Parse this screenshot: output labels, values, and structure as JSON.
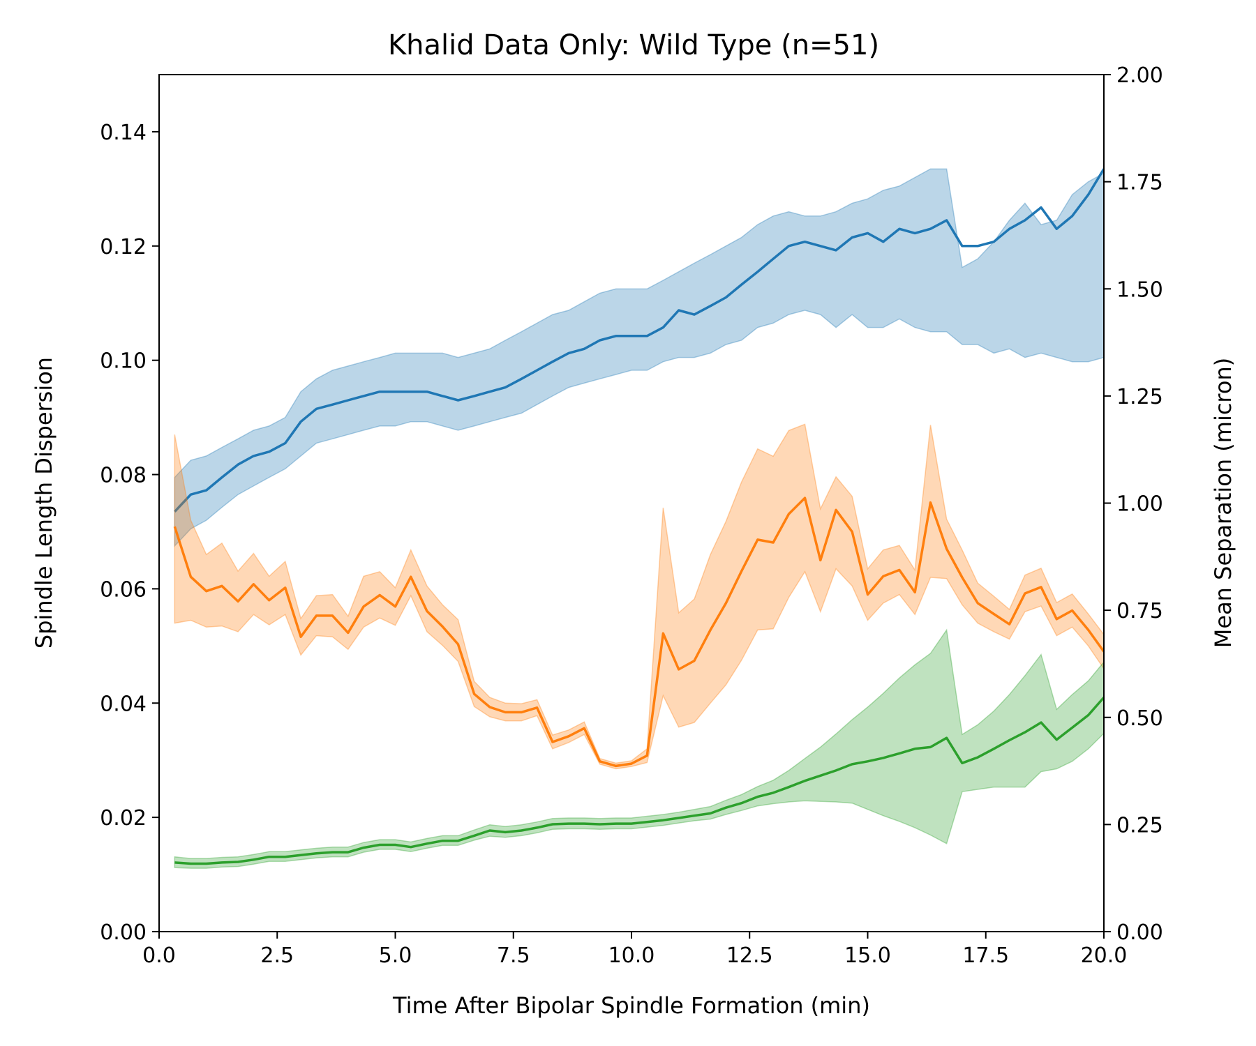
{
  "chart_data": {
    "type": "line",
    "title": "Khalid Data Only: Wild Type (n=51)",
    "xlabel": "Time After Bipolar Spindle Formation (min)",
    "ylabel": "Spindle Length Dispersion",
    "y2label": "Mean Separation (micron)",
    "xlim": [
      0,
      20
    ],
    "ylim": [
      0,
      0.15
    ],
    "y2lim": [
      0,
      2.0
    ],
    "x_ticks": [
      "0.0",
      "2.5",
      "5.0",
      "7.5",
      "10.0",
      "12.5",
      "15.0",
      "17.5",
      "20.0"
    ],
    "y_ticks": [
      "0.00",
      "0.02",
      "0.04",
      "0.06",
      "0.08",
      "0.10",
      "0.12",
      "0.14"
    ],
    "y2_ticks": [
      "0.00",
      "0.25",
      "0.50",
      "0.75",
      "1.00",
      "1.25",
      "1.50",
      "1.75",
      "2.00"
    ],
    "grid": false,
    "x": [
      0.33,
      0.67,
      1.0,
      1.33,
      1.67,
      2.0,
      2.33,
      2.67,
      3.0,
      3.33,
      3.67,
      4.0,
      4.33,
      4.67,
      5.0,
      5.33,
      5.67,
      6.0,
      6.33,
      6.67,
      7.0,
      7.33,
      7.67,
      8.0,
      8.33,
      8.67,
      9.0,
      9.33,
      9.67,
      10.0,
      10.33,
      10.67,
      11.0,
      11.33,
      11.67,
      12.0,
      12.33,
      12.67,
      13.0,
      13.33,
      13.67,
      14.0,
      14.33,
      14.67,
      15.0,
      15.33,
      15.67,
      16.0,
      16.33,
      16.67,
      17.0,
      17.33,
      17.67,
      18.0,
      18.33,
      18.67,
      19.0,
      19.33,
      19.67,
      20.0
    ],
    "series": [
      {
        "axis": "right",
        "color": "#1f77b4",
        "fill": "#1f77b4",
        "values": [
          0.98,
          1.02,
          1.03,
          1.06,
          1.09,
          1.11,
          1.12,
          1.14,
          1.19,
          1.22,
          1.23,
          1.24,
          1.25,
          1.26,
          1.26,
          1.26,
          1.26,
          1.25,
          1.24,
          1.25,
          1.26,
          1.27,
          1.29,
          1.31,
          1.33,
          1.35,
          1.36,
          1.38,
          1.39,
          1.39,
          1.39,
          1.41,
          1.45,
          1.44,
          1.46,
          1.48,
          1.51,
          1.54,
          1.57,
          1.6,
          1.61,
          1.6,
          1.59,
          1.62,
          1.63,
          1.61,
          1.64,
          1.63,
          1.64,
          1.66,
          1.6,
          1.6,
          1.61,
          1.64,
          1.66,
          1.69,
          1.64,
          1.67,
          1.72,
          1.78
        ],
        "lower": [
          0.9,
          0.94,
          0.96,
          0.99,
          1.02,
          1.04,
          1.06,
          1.08,
          1.11,
          1.14,
          1.15,
          1.16,
          1.17,
          1.18,
          1.18,
          1.19,
          1.19,
          1.18,
          1.17,
          1.18,
          1.19,
          1.2,
          1.21,
          1.23,
          1.25,
          1.27,
          1.28,
          1.29,
          1.3,
          1.31,
          1.31,
          1.33,
          1.34,
          1.34,
          1.35,
          1.37,
          1.38,
          1.41,
          1.42,
          1.44,
          1.45,
          1.44,
          1.41,
          1.44,
          1.41,
          1.41,
          1.43,
          1.41,
          1.4,
          1.4,
          1.37,
          1.37,
          1.35,
          1.36,
          1.34,
          1.35,
          1.34,
          1.33,
          1.33,
          1.34
        ],
        "upper": [
          1.06,
          1.1,
          1.11,
          1.13,
          1.15,
          1.17,
          1.18,
          1.2,
          1.26,
          1.29,
          1.31,
          1.32,
          1.33,
          1.34,
          1.35,
          1.35,
          1.35,
          1.35,
          1.34,
          1.35,
          1.36,
          1.38,
          1.4,
          1.42,
          1.44,
          1.45,
          1.47,
          1.49,
          1.5,
          1.5,
          1.5,
          1.52,
          1.54,
          1.56,
          1.58,
          1.6,
          1.62,
          1.65,
          1.67,
          1.68,
          1.67,
          1.67,
          1.68,
          1.7,
          1.71,
          1.73,
          1.74,
          1.76,
          1.78,
          1.78,
          1.55,
          1.57,
          1.61,
          1.66,
          1.7,
          1.65,
          1.66,
          1.72,
          1.75,
          1.77
        ]
      },
      {
        "axis": "left",
        "color": "#ff7f0e",
        "fill": "#ff7f0e",
        "values": [
          0.0709,
          0.0621,
          0.0596,
          0.0605,
          0.0578,
          0.0608,
          0.058,
          0.0602,
          0.0516,
          0.0553,
          0.0553,
          0.0523,
          0.0569,
          0.0589,
          0.0569,
          0.0621,
          0.0561,
          0.0534,
          0.0503,
          0.0416,
          0.0393,
          0.0384,
          0.0384,
          0.0392,
          0.0332,
          0.0342,
          0.0356,
          0.0298,
          0.029,
          0.0294,
          0.0308,
          0.0522,
          0.0459,
          0.0474,
          0.0528,
          0.0575,
          0.0631,
          0.0686,
          0.0681,
          0.0731,
          0.0759,
          0.065,
          0.0738,
          0.07,
          0.059,
          0.0622,
          0.0633,
          0.0594,
          0.0751,
          0.067,
          0.062,
          0.0575,
          0.0556,
          0.0538,
          0.0592,
          0.0603,
          0.0547,
          0.0562,
          0.0528,
          0.049
        ],
        "lower": [
          0.054,
          0.0545,
          0.0533,
          0.0535,
          0.0525,
          0.0555,
          0.0537,
          0.0555,
          0.0484,
          0.0518,
          0.0516,
          0.0494,
          0.0533,
          0.0549,
          0.0536,
          0.0588,
          0.0525,
          0.0501,
          0.0473,
          0.0394,
          0.0376,
          0.0369,
          0.0369,
          0.0378,
          0.032,
          0.0331,
          0.0345,
          0.0293,
          0.0285,
          0.0289,
          0.0296,
          0.0413,
          0.0358,
          0.0366,
          0.04,
          0.0432,
          0.0475,
          0.0528,
          0.053,
          0.0585,
          0.063,
          0.056,
          0.0635,
          0.0605,
          0.0545,
          0.0575,
          0.059,
          0.0555,
          0.062,
          0.0618,
          0.0572,
          0.054,
          0.0525,
          0.0512,
          0.056,
          0.057,
          0.0518,
          0.0533,
          0.05,
          0.046
        ],
        "upper": [
          0.087,
          0.072,
          0.066,
          0.068,
          0.0631,
          0.0662,
          0.0622,
          0.0648,
          0.0548,
          0.0588,
          0.059,
          0.0552,
          0.0622,
          0.063,
          0.0602,
          0.0668,
          0.0605,
          0.0572,
          0.0546,
          0.0438,
          0.041,
          0.04,
          0.0399,
          0.0406,
          0.0344,
          0.0353,
          0.0367,
          0.0303,
          0.0295,
          0.0299,
          0.032,
          0.0742,
          0.0558,
          0.0582,
          0.066,
          0.0718,
          0.0787,
          0.0845,
          0.0832,
          0.0877,
          0.0888,
          0.074,
          0.0796,
          0.0762,
          0.0635,
          0.0668,
          0.0676,
          0.0633,
          0.0887,
          0.0722,
          0.0668,
          0.061,
          0.0587,
          0.0564,
          0.0624,
          0.0636,
          0.0576,
          0.0591,
          0.0556,
          0.052
        ]
      },
      {
        "axis": "left",
        "color": "#2ca02c",
        "fill": "#2ca02c",
        "values": [
          0.0121,
          0.0119,
          0.0119,
          0.0121,
          0.0122,
          0.0126,
          0.0131,
          0.0131,
          0.0134,
          0.0137,
          0.0139,
          0.0139,
          0.0147,
          0.0152,
          0.0152,
          0.0148,
          0.0154,
          0.0159,
          0.0159,
          0.0168,
          0.0177,
          0.0174,
          0.0177,
          0.0182,
          0.0188,
          0.0189,
          0.0189,
          0.0188,
          0.0189,
          0.0189,
          0.0192,
          0.0195,
          0.0199,
          0.0203,
          0.0207,
          0.0217,
          0.0225,
          0.0236,
          0.0243,
          0.0253,
          0.0264,
          0.0273,
          0.0282,
          0.0293,
          0.0298,
          0.0304,
          0.0312,
          0.032,
          0.0323,
          0.0339,
          0.0295,
          0.0305,
          0.032,
          0.0335,
          0.0349,
          0.0366,
          0.0336,
          0.0357,
          0.0379,
          0.041
        ],
        "lower": [
          0.0112,
          0.0111,
          0.0111,
          0.0113,
          0.0114,
          0.0118,
          0.0123,
          0.0123,
          0.0126,
          0.0129,
          0.0131,
          0.0131,
          0.0139,
          0.0144,
          0.0144,
          0.014,
          0.0146,
          0.0151,
          0.0151,
          0.016,
          0.0167,
          0.0165,
          0.0168,
          0.0173,
          0.0179,
          0.018,
          0.018,
          0.0179,
          0.018,
          0.018,
          0.0183,
          0.0186,
          0.019,
          0.0194,
          0.0197,
          0.0205,
          0.0212,
          0.022,
          0.0224,
          0.0227,
          0.0229,
          0.0228,
          0.0227,
          0.0225,
          0.0214,
          0.0203,
          0.0193,
          0.0182,
          0.0169,
          0.0154,
          0.0245,
          0.0249,
          0.0253,
          0.0253,
          0.0253,
          0.028,
          0.0285,
          0.0298,
          0.032,
          0.0347
        ],
        "upper": [
          0.0131,
          0.0128,
          0.0128,
          0.013,
          0.0131,
          0.0135,
          0.014,
          0.014,
          0.0143,
          0.0146,
          0.0148,
          0.0148,
          0.0156,
          0.0161,
          0.0161,
          0.0157,
          0.0163,
          0.0168,
          0.0168,
          0.0178,
          0.0187,
          0.0184,
          0.0187,
          0.0192,
          0.0198,
          0.0199,
          0.0199,
          0.0198,
          0.0199,
          0.0199,
          0.0202,
          0.0205,
          0.0209,
          0.0214,
          0.0219,
          0.023,
          0.024,
          0.0254,
          0.0265,
          0.0282,
          0.0303,
          0.0323,
          0.0346,
          0.0371,
          0.0393,
          0.0417,
          0.0444,
          0.0467,
          0.0487,
          0.0528,
          0.0345,
          0.0362,
          0.0386,
          0.0415,
          0.0448,
          0.0485,
          0.0389,
          0.0415,
          0.0439,
          0.0472
        ]
      }
    ]
  }
}
